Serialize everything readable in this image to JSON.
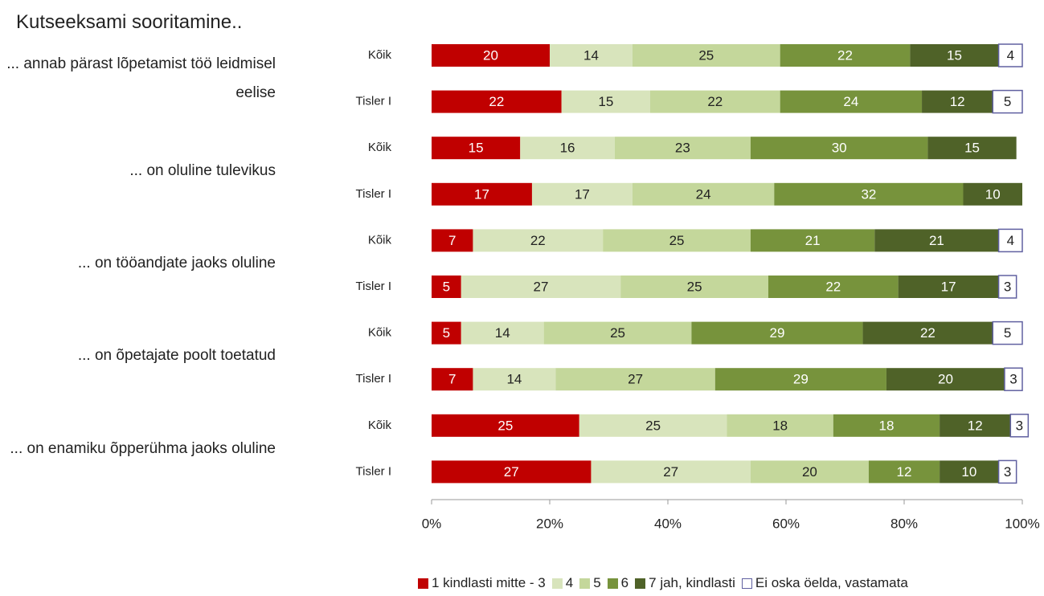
{
  "chart_data": {
    "type": "stacked_barh",
    "title": "Kutseeksami sooritamine..",
    "groups": [
      "... annab pärast lõpetamist töö leidmisel eelise",
      "... on oluline tulevikus",
      "... on tööandjate jaoks oluline",
      "... on õpetajate poolt toetatud",
      "... on enamiku õpperühma jaoks oluline"
    ],
    "categories": [
      "Kõik",
      "Tisler I",
      "Kõik",
      "Tisler I",
      "Kõik",
      "Tisler I",
      "Kõik",
      "Tisler I",
      "Kõik",
      "Tisler I"
    ],
    "series": [
      {
        "name": "1 kindlasti mitte - 3",
        "color": "#c00000",
        "text_color": "#ffffff",
        "values": [
          20,
          22,
          15,
          17,
          7,
          5,
          5,
          7,
          25,
          27
        ]
      },
      {
        "name": "4",
        "color": "#d8e4bc",
        "text_color": "#222222",
        "values": [
          14,
          15,
          16,
          17,
          22,
          27,
          14,
          14,
          25,
          27
        ]
      },
      {
        "name": "5",
        "color": "#c4d79b",
        "text_color": "#222222",
        "values": [
          25,
          22,
          23,
          24,
          25,
          25,
          25,
          27,
          18,
          20
        ]
      },
      {
        "name": "6",
        "color": "#77933c",
        "text_color": "#ffffff",
        "values": [
          22,
          24,
          30,
          32,
          21,
          22,
          29,
          29,
          18,
          12
        ]
      },
      {
        "name": "7 jah, kindlasti",
        "color": "#4f6228",
        "text_color": "#ffffff",
        "values": [
          15,
          12,
          15,
          10,
          21,
          17,
          22,
          20,
          12,
          10
        ]
      },
      {
        "name": "Ei oska öelda, vastamata",
        "color": "#ffffff",
        "text_color": "#222222",
        "border": "#6060a0",
        "values": [
          4,
          5,
          null,
          null,
          4,
          3,
          5,
          3,
          3,
          3
        ]
      }
    ],
    "xlim": [
      0,
      100
    ],
    "xticks": [
      {
        "value": 0,
        "label": "0%"
      },
      {
        "value": 20,
        "label": "20%"
      },
      {
        "value": 40,
        "label": "40%"
      },
      {
        "value": 60,
        "label": "60%"
      },
      {
        "value": 80,
        "label": "80%"
      },
      {
        "value": 100,
        "label": "100%"
      }
    ]
  }
}
